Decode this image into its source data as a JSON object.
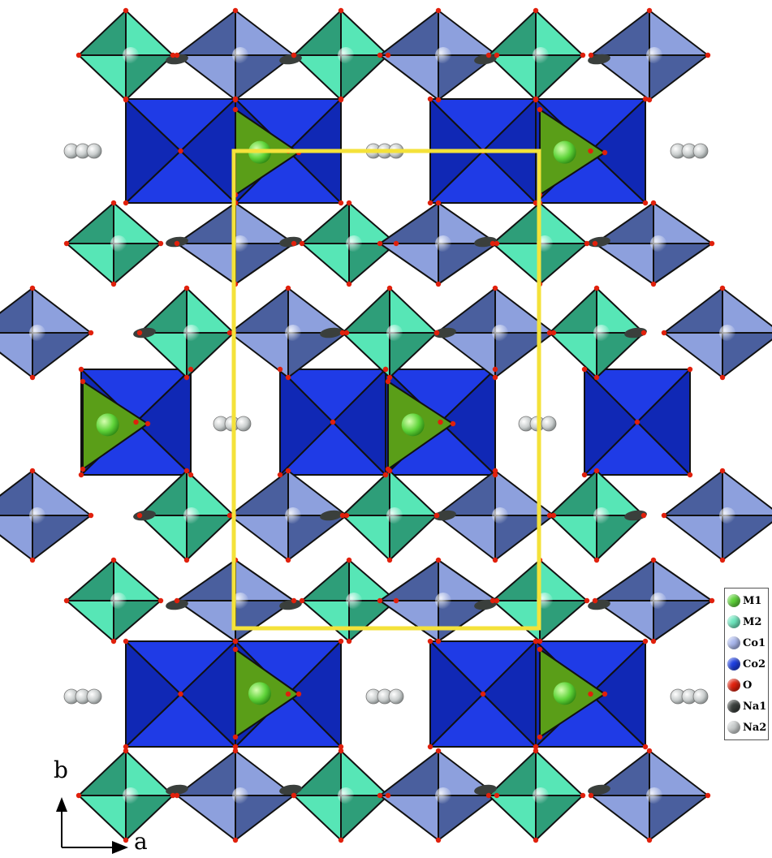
{
  "legend": {
    "items": [
      {
        "label": "M1",
        "color": "#5fd43a"
      },
      {
        "label": "M2",
        "color": "#6ee8bf"
      },
      {
        "label": "Co1",
        "color": "#aab8ee"
      },
      {
        "label": "Co2",
        "color": "#1c3ee0"
      },
      {
        "label": "O",
        "color": "#e0200c"
      },
      {
        "label": "Na1",
        "color": "#3a3f3c"
      },
      {
        "label": "Na2",
        "color": "#c8cccc"
      }
    ]
  },
  "axes": {
    "b_label": "b",
    "a_label": "a"
  },
  "colors": {
    "co2_poly": "#1f3be6",
    "co2_poly_dark": "#1028b5",
    "co1_poly": "#8da0dd",
    "co1_poly_dark": "#4a5f9e",
    "m2_poly": "#57e6b6",
    "m2_poly_dark": "#2e9e79",
    "m1_poly": "#5a9e18",
    "unit_cell": "#f4e23a"
  }
}
